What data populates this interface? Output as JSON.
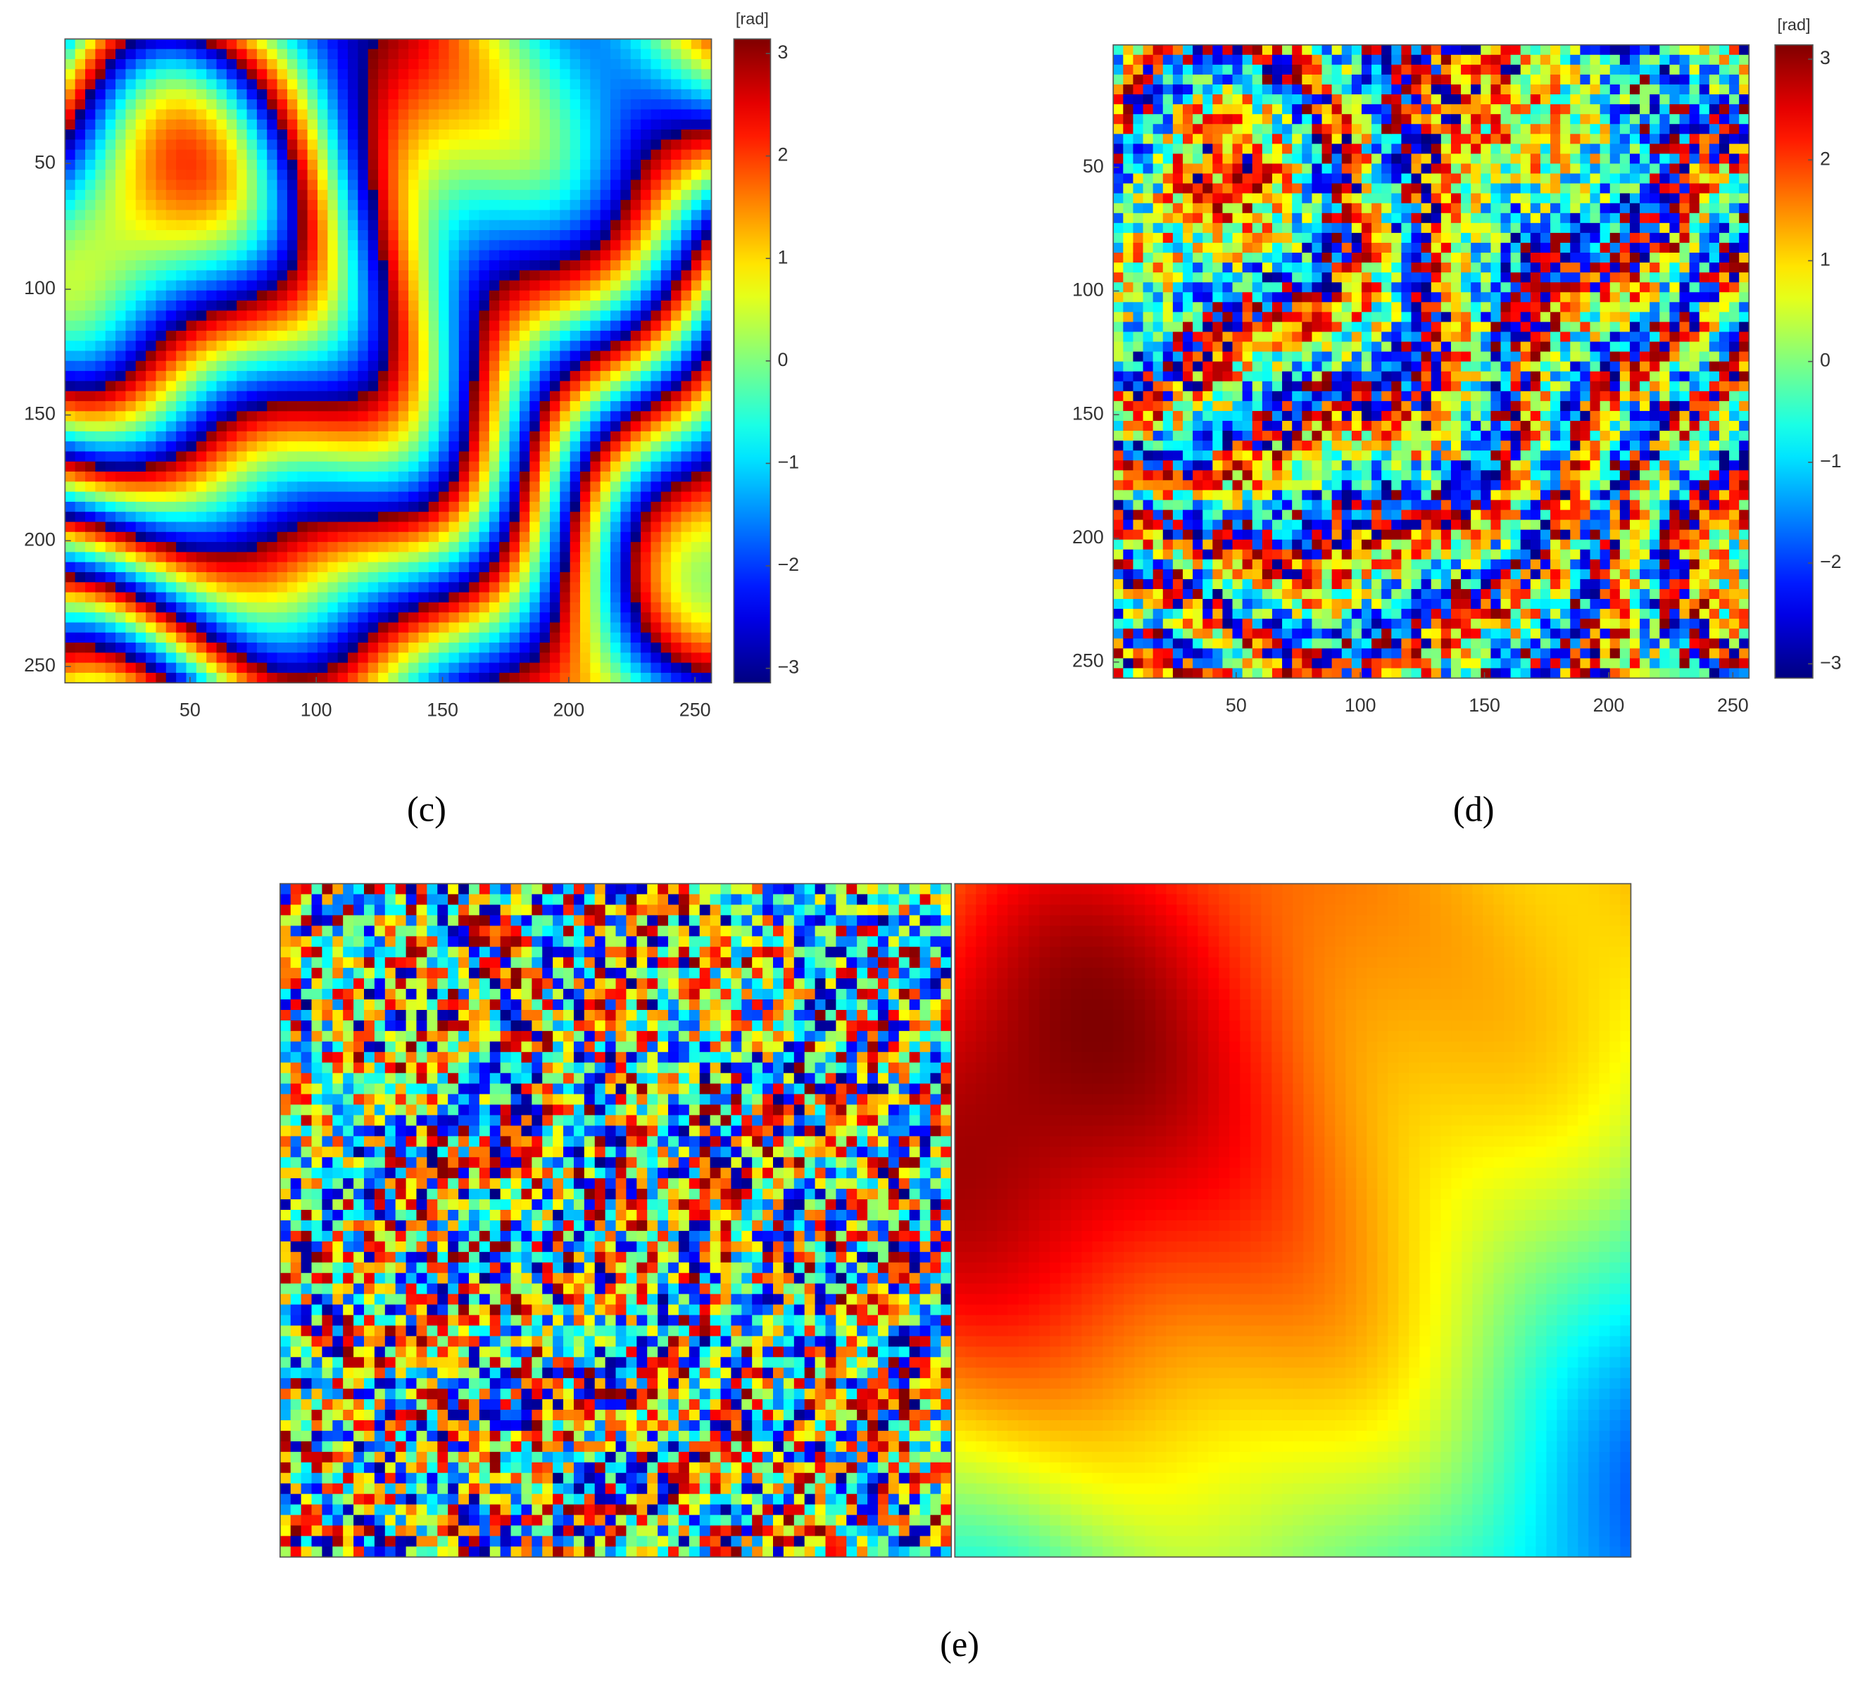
{
  "chart_data": [
    {
      "type": "heatmap",
      "caption": "(c)",
      "xlim": [
        0.5,
        256.5
      ],
      "ylim": [
        0.5,
        256.5
      ],
      "y_reversed": true,
      "xticks": [
        50,
        100,
        150,
        200,
        250
      ],
      "yticks": [
        50,
        100,
        150,
        200,
        250
      ],
      "colormap": "jet",
      "colorbar": {
        "label": "[rad]",
        "lim": [
          -3.1416,
          3.1416
        ],
        "ticks": [
          {
            "value": -3,
            "label": "−3"
          },
          {
            "value": -2,
            "label": "−2"
          },
          {
            "value": -1,
            "label": "−1"
          },
          0,
          1,
          2,
          3
        ]
      }
    },
    {
      "type": "heatmap",
      "caption": "(d)",
      "xlim": [
        0.5,
        256.5
      ],
      "ylim": [
        0.5,
        256.5
      ],
      "y_reversed": true,
      "xticks": [
        50,
        100,
        150,
        200,
        250
      ],
      "yticks": [
        50,
        100,
        150,
        200,
        250
      ],
      "colormap": "jet",
      "colorbar": {
        "label": "[rad]",
        "lim": [
          -3.1416,
          3.1416
        ],
        "ticks": [
          {
            "value": -3,
            "label": "−3"
          },
          {
            "value": -2,
            "label": "−2"
          },
          {
            "value": -1,
            "label": "−1"
          },
          0,
          1,
          2,
          3
        ]
      }
    },
    {
      "type": "image-pair",
      "caption": "(e)",
      "colormap": "jet"
    }
  ]
}
